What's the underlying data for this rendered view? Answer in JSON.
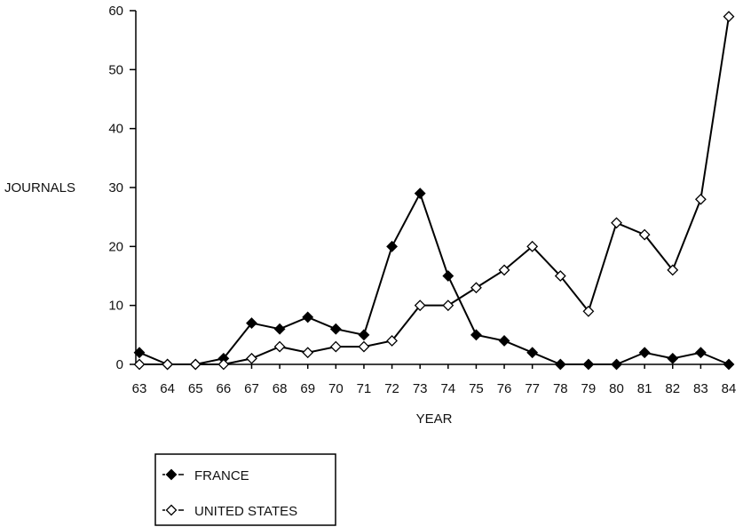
{
  "chart_data": {
    "type": "line",
    "xlabel": "YEAR",
    "ylabel": "JOURNALS",
    "categories": [
      "63",
      "64",
      "65",
      "66",
      "67",
      "68",
      "69",
      "70",
      "71",
      "72",
      "73",
      "74",
      "75",
      "76",
      "77",
      "78",
      "79",
      "80",
      "81",
      "82",
      "83",
      "84"
    ],
    "yticks": [
      "0",
      "10",
      "20",
      "30",
      "40",
      "50",
      "60"
    ],
    "ylim": [
      0,
      60
    ],
    "grid": false,
    "legend_position": "bottom-left",
    "series": [
      {
        "name": "FRANCE",
        "marker": "filled-diamond",
        "color": "#000000",
        "values": [
          2,
          0,
          0,
          1,
          7,
          6,
          8,
          6,
          5,
          20,
          29,
          15,
          5,
          4,
          2,
          0,
          0,
          0,
          2,
          1,
          2,
          0
        ]
      },
      {
        "name": "UNITED STATES",
        "marker": "open-diamond",
        "color": "#000000",
        "values": [
          0,
          0,
          0,
          0,
          1,
          3,
          2,
          3,
          3,
          4,
          10,
          10,
          13,
          16,
          20,
          15,
          9,
          24,
          22,
          16,
          28,
          59
        ]
      }
    ]
  }
}
